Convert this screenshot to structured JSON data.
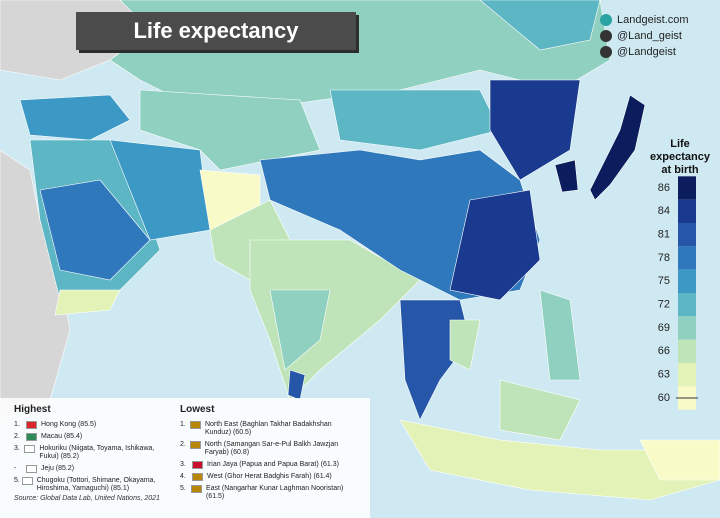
{
  "header": {
    "title": "Life expectancy"
  },
  "social": [
    {
      "handle": "Landgeist.com"
    },
    {
      "handle": "@Land_geist"
    },
    {
      "handle": "@Landgeist"
    }
  ],
  "legend": {
    "title_lines": [
      "Life",
      "expectancy",
      "at birth"
    ],
    "ticks": [
      86,
      84,
      81,
      78,
      75,
      72,
      69,
      66,
      63,
      60
    ],
    "colors": [
      "#0b1d5c",
      "#1a3a8f",
      "#2556a8",
      "#2f78bb",
      "#3c98c4",
      "#5db6c4",
      "#8fd0c0",
      "#bfe4b9",
      "#e3f2b6",
      "#f8fac8"
    ]
  },
  "highest": {
    "heading": "Highest",
    "items": [
      {
        "rank": "1.",
        "text": "Hong Kong (85.5)"
      },
      {
        "rank": "2.",
        "text": "Macau (85.4)"
      },
      {
        "rank": "3.",
        "text": "Hokuriku (Niigata, Toyama, Ishikawa, Fukui) (85.2)"
      },
      {
        "rank": "-",
        "text": "Jeju (85.2)"
      },
      {
        "rank": "5.",
        "text": "Chugoku (Tottori, Shimane, Okayama, Hiroshima, Yamaguchi) (85.1)"
      }
    ]
  },
  "lowest": {
    "heading": "Lowest",
    "items": [
      {
        "rank": "1.",
        "text": "North East (Baghlan Takhar Badakhshan Kunduz) (60.5)"
      },
      {
        "rank": "2.",
        "text": "North (Samangan Sar-e-Pul Balkh Jawzjan Faryab) (60.8)"
      },
      {
        "rank": "3.",
        "text": "Irian Jaya (Papua and Papua Barat) (61.3)"
      },
      {
        "rank": "4.",
        "text": "West (Ghor Herat Badghis Farah) (61.4)"
      },
      {
        "rank": "5.",
        "text": "East (Nangarhar Kunar Laghman Nooristan) (61.5)"
      }
    ]
  },
  "source": "Source: Global Data Lab, United Nations, 2021"
}
